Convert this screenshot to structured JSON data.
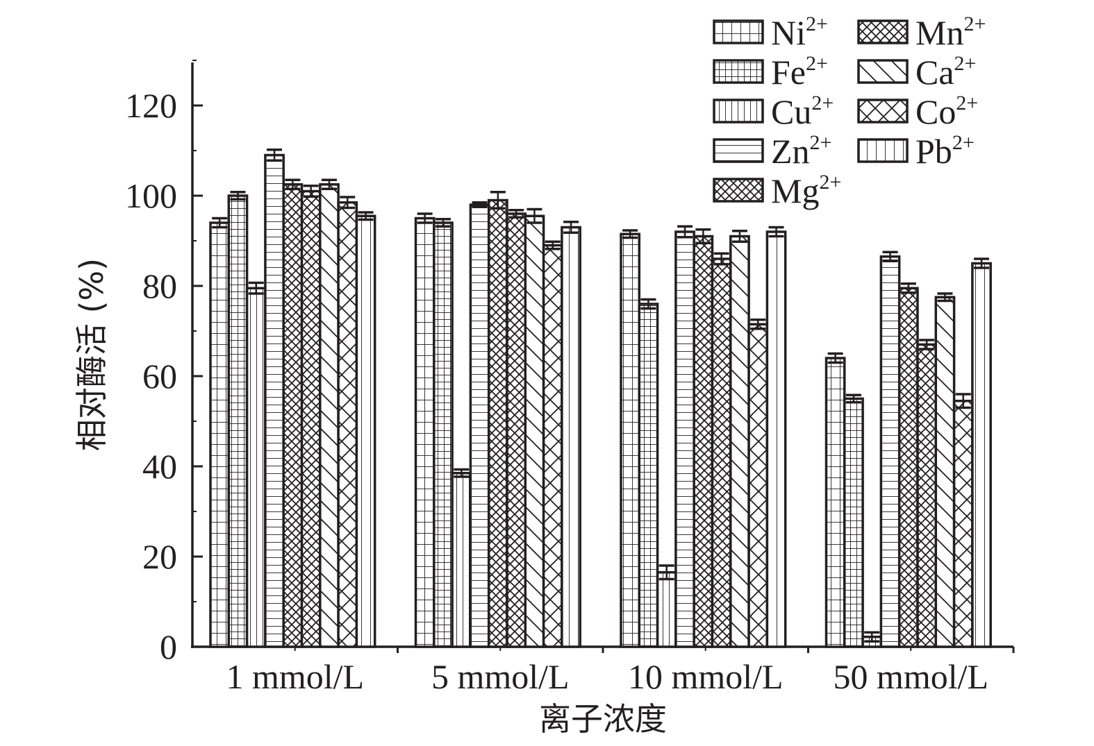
{
  "chart_data": {
    "type": "bar",
    "title": "",
    "xlabel": "离子浓度",
    "ylabel": "相对酶活 (%)",
    "ylim": [
      0,
      130
    ],
    "yticks": [
      0,
      20,
      40,
      60,
      80,
      100,
      120
    ],
    "grid": false,
    "legend_position": "top-right",
    "categories": [
      "1 mmol/L",
      "5 mmol/L",
      "10 mmol/L",
      "50 mmol/L"
    ],
    "series": [
      {
        "name": "Ni",
        "charge": "2+",
        "pattern": "grid-coarse",
        "values": [
          94,
          95,
          91.5,
          64
        ],
        "errors": [
          1,
          1,
          0.8,
          1
        ]
      },
      {
        "name": "Fe",
        "charge": "2+",
        "pattern": "grid-fine",
        "values": [
          100,
          94,
          76,
          55
        ],
        "errors": [
          0.8,
          0.8,
          1,
          0.8
        ]
      },
      {
        "name": "Cu",
        "charge": "2+",
        "pattern": "vertical-dense",
        "values": [
          79.5,
          38.5,
          16.5,
          2.2
        ],
        "errors": [
          1.2,
          0.8,
          1.5,
          1
        ]
      },
      {
        "name": "Zn",
        "charge": "2+",
        "pattern": "horizontal",
        "values": [
          109,
          98,
          92,
          86.5
        ],
        "errors": [
          1.2,
          0.5,
          1.2,
          1
        ]
      },
      {
        "name": "Mg",
        "charge": "2+",
        "pattern": "crosshatch-dense",
        "values": [
          102.5,
          99,
          91,
          79.5
        ],
        "errors": [
          1,
          1.8,
          1.5,
          1
        ]
      },
      {
        "name": "Mn",
        "charge": "2+",
        "pattern": "crosshatch-medium",
        "values": [
          101,
          96,
          86,
          67
        ],
        "errors": [
          1.2,
          0.8,
          1.2,
          1
        ]
      },
      {
        "name": "Ca",
        "charge": "2+",
        "pattern": "diagonal",
        "values": [
          102.5,
          95.5,
          91,
          77.5
        ],
        "errors": [
          1,
          1.5,
          1.2,
          0.8
        ]
      },
      {
        "name": "Co",
        "charge": "2+",
        "pattern": "crosshatch-wide",
        "values": [
          98.5,
          89,
          71.5,
          54.5
        ],
        "errors": [
          1.2,
          0.8,
          1,
          1.5
        ]
      },
      {
        "name": "Pb",
        "charge": "2+",
        "pattern": "vertical-sparse",
        "values": [
          95.5,
          93,
          92,
          85
        ],
        "errors": [
          0.8,
          1.2,
          1,
          1
        ]
      }
    ]
  }
}
